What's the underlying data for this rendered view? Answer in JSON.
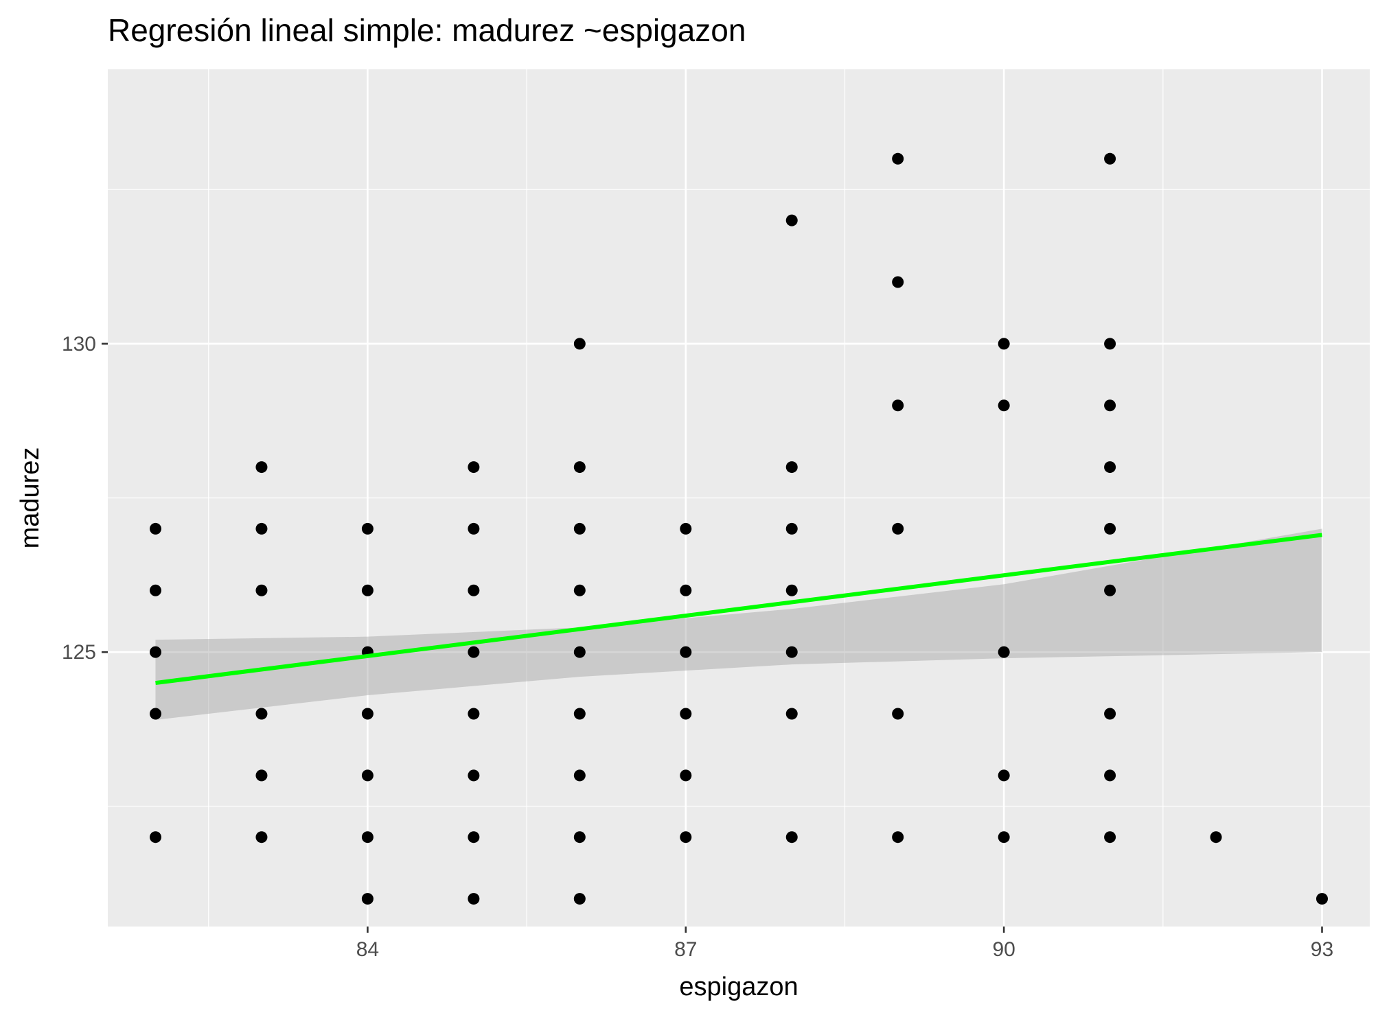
{
  "chart_data": {
    "type": "scatter",
    "title": "Regresión lineal simple:  madurez ~espigazon",
    "xlabel": "espigazon",
    "ylabel": "madurez",
    "xlim": [
      81.55,
      93.45
    ],
    "ylim": [
      120.55,
      134.45
    ],
    "x_ticks": [
      "84",
      "87",
      "90",
      "93"
    ],
    "y_ticks": [
      "125",
      "130"
    ],
    "x_tick_values": [
      84,
      87,
      90,
      93
    ],
    "y_tick_values": [
      125,
      130
    ],
    "grid": true,
    "points": [
      [
        82,
        124
      ],
      [
        82,
        125
      ],
      [
        82,
        126
      ],
      [
        82,
        127
      ],
      [
        82,
        122
      ],
      [
        83,
        128
      ],
      [
        83,
        127
      ],
      [
        83,
        126
      ],
      [
        83,
        124
      ],
      [
        83,
        123
      ],
      [
        83,
        122
      ],
      [
        84,
        127
      ],
      [
        84,
        126
      ],
      [
        84,
        125
      ],
      [
        84,
        124
      ],
      [
        84,
        123
      ],
      [
        84,
        122
      ],
      [
        84,
        121
      ],
      [
        85,
        128
      ],
      [
        85,
        127
      ],
      [
        85,
        126
      ],
      [
        85,
        125
      ],
      [
        85,
        124
      ],
      [
        85,
        123
      ],
      [
        85,
        122
      ],
      [
        85,
        121
      ],
      [
        86,
        130
      ],
      [
        86,
        128
      ],
      [
        86,
        127
      ],
      [
        86,
        126
      ],
      [
        86,
        125
      ],
      [
        86,
        124
      ],
      [
        86,
        123
      ],
      [
        86,
        122
      ],
      [
        86,
        121
      ],
      [
        87,
        127
      ],
      [
        87,
        126
      ],
      [
        87,
        125
      ],
      [
        87,
        124
      ],
      [
        87,
        123
      ],
      [
        87,
        122
      ],
      [
        88,
        132
      ],
      [
        88,
        128
      ],
      [
        88,
        127
      ],
      [
        88,
        126
      ],
      [
        88,
        125
      ],
      [
        88,
        124
      ],
      [
        88,
        122
      ],
      [
        89,
        133
      ],
      [
        89,
        131
      ],
      [
        89,
        129
      ],
      [
        89,
        127
      ],
      [
        89,
        124
      ],
      [
        89,
        122
      ],
      [
        90,
        130
      ],
      [
        90,
        129
      ],
      [
        90,
        125
      ],
      [
        90,
        123
      ],
      [
        90,
        122
      ],
      [
        91,
        133
      ],
      [
        91,
        130
      ],
      [
        91,
        129
      ],
      [
        91,
        128
      ],
      [
        91,
        127
      ],
      [
        91,
        126
      ],
      [
        91,
        124
      ],
      [
        91,
        123
      ],
      [
        91,
        122
      ],
      [
        92,
        122
      ],
      [
        93,
        121
      ]
    ],
    "fit_line": {
      "x": [
        82,
        93
      ],
      "y": [
        124.5,
        126.9
      ],
      "color": "#00ff00"
    },
    "confidence_band": {
      "x": [
        82,
        84,
        86,
        88,
        90,
        93
      ],
      "lower": [
        123.9,
        124.3,
        124.6,
        124.8,
        124.9,
        125.0
      ],
      "upper": [
        125.2,
        125.25,
        125.4,
        125.7,
        126.1,
        127.0
      ]
    },
    "colors": {
      "panel_background": "#ebebeb",
      "grid": "#ffffff",
      "points": "#000000",
      "band": "#999999"
    }
  }
}
